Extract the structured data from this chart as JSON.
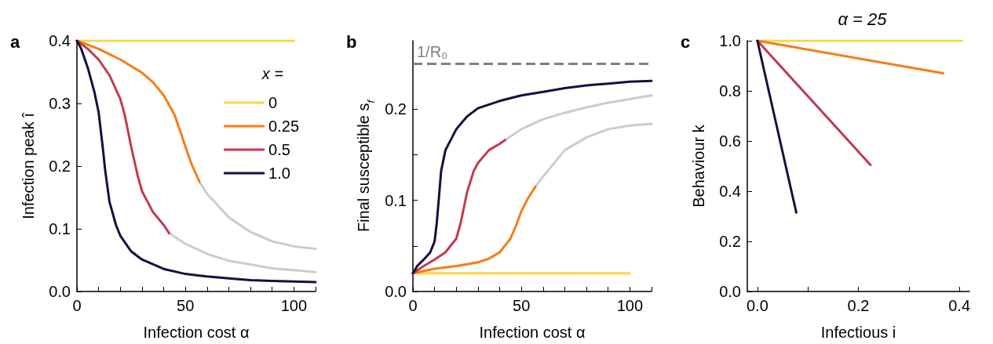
{
  "chart_data": [
    {
      "type": "line",
      "xlabel": "Infection cost α",
      "ylabel": "Infection peak î",
      "annotations": [
        "a"
      ],
      "legend_title": "x =",
      "legend": "top right",
      "grid": false,
      "marker": "none",
      "line_style": "solid",
      "xlim": [
        0,
        110
      ],
      "ylim": [
        0,
        0.4
      ],
      "xticks": [
        0,
        {
          "value": 10,
          "label": null
        },
        {
          "value": 20,
          "label": null
        },
        {
          "value": 30,
          "label": null
        },
        {
          "value": 40,
          "label": null
        },
        50,
        {
          "value": 60,
          "label": null
        },
        {
          "value": 70,
          "label": null
        },
        {
          "value": 80,
          "label": null
        },
        {
          "value": 90,
          "label": null
        },
        100,
        {
          "value": 110,
          "label": null
        }
      ],
      "yticks": [
        {
          "value": 0,
          "label": "0.0"
        },
        {
          "value": 0.1,
          "label": "0.1"
        },
        {
          "value": 0.2,
          "label": "0.2"
        },
        {
          "value": 0.3,
          "label": "0.3"
        },
        {
          "value": 0.4,
          "label": "0.4"
        }
      ],
      "series": [
        {
          "name": "0",
          "color": "#f6d645",
          "x": [
            0,
            100
          ],
          "values": [
            0.4,
            0.4
          ]
        },
        {
          "color": "#cccccc",
          "x": [
            56.5,
            60,
            70,
            80,
            90,
            100,
            110
          ],
          "values": [
            0.175,
            0.156,
            0.118,
            0.095,
            0.08,
            0.072,
            0.068
          ]
        },
        {
          "color": "#cccccc",
          "x": [
            42.5,
            50,
            60,
            70,
            80,
            90,
            100,
            110
          ],
          "values": [
            0.093,
            0.076,
            0.06,
            0.049,
            0.043,
            0.037,
            0.034,
            0.031
          ]
        },
        {
          "name": "0.25",
          "color": "#f57d15",
          "x": [
            0,
            10,
            20,
            30,
            35,
            40,
            45,
            48,
            50,
            53,
            56.5
          ],
          "values": [
            0.4,
            0.387,
            0.37,
            0.349,
            0.334,
            0.313,
            0.282,
            0.252,
            0.231,
            0.202,
            0.175
          ]
        },
        {
          "name": "0.5",
          "color": "#c03a51",
          "x": [
            0,
            5,
            10,
            15,
            20,
            22,
            25,
            28,
            30,
            35,
            40,
            42.5
          ],
          "values": [
            0.4,
            0.387,
            0.37,
            0.345,
            0.307,
            0.282,
            0.231,
            0.185,
            0.16,
            0.127,
            0.106,
            0.093
          ]
        },
        {
          "name": "1.0",
          "color": "#1b0c41",
          "x": [
            0,
            2,
            5,
            8,
            10,
            12,
            13,
            15,
            18,
            20,
            25,
            30,
            40,
            50,
            60,
            70,
            80,
            90,
            100,
            110
          ],
          "values": [
            0.4,
            0.387,
            0.357,
            0.319,
            0.286,
            0.227,
            0.194,
            0.143,
            0.106,
            0.089,
            0.064,
            0.051,
            0.036,
            0.028,
            0.024,
            0.021,
            0.018,
            0.017,
            0.016,
            0.015
          ]
        }
      ]
    },
    {
      "type": "line",
      "xlabel": "Infection cost α",
      "ylabel": "Final susceptible s$_{f}$",
      "annotations": [
        "b"
      ],
      "grid": false,
      "marker": "none",
      "line_style": "solid",
      "xlim": [
        0,
        110
      ],
      "ylim": [
        0,
        0.275
      ],
      "xticks": [
        0,
        {
          "value": 10,
          "label": null
        },
        {
          "value": 20,
          "label": null
        },
        {
          "value": 30,
          "label": null
        },
        {
          "value": 40,
          "label": null
        },
        50,
        {
          "value": 60,
          "label": null
        },
        {
          "value": 70,
          "label": null
        },
        {
          "value": 80,
          "label": null
        },
        {
          "value": 90,
          "label": null
        },
        100,
        {
          "value": 110,
          "label": null
        }
      ],
      "yticks": [
        {
          "value": 0,
          "label": "0.0"
        },
        {
          "value": 0.05,
          "label": null
        },
        {
          "value": 0.1,
          "label": "0.1"
        },
        {
          "value": 0.15,
          "label": null
        },
        {
          "value": 0.2,
          "label": "0.2"
        },
        {
          "value": 0.25,
          "label": null
        }
      ],
      "ref_lines": [
        {
          "axis": "y",
          "value": 0.25,
          "label": "1/R₀",
          "color": "#808080",
          "line_style": "dashed"
        }
      ],
      "series": [
        {
          "color": "#f6d645",
          "x": [
            0,
            100
          ],
          "values": [
            0.02,
            0.02
          ]
        },
        {
          "color": "#cccccc",
          "x": [
            56.5,
            60,
            70,
            80,
            90,
            100,
            110
          ],
          "values": [
            0.115,
            0.126,
            0.155,
            0.169,
            0.178,
            0.182,
            0.184
          ]
        },
        {
          "color": "#cccccc",
          "x": [
            42.5,
            50,
            60,
            70,
            80,
            90,
            100,
            110
          ],
          "values": [
            0.166,
            0.178,
            0.189,
            0.196,
            0.202,
            0.207,
            0.211,
            0.215
          ]
        },
        {
          "color": "#f57d15",
          "x": [
            0,
            10,
            20,
            30,
            35,
            40,
            45,
            48,
            50,
            53,
            56.5
          ],
          "values": [
            0.02,
            0.025,
            0.028,
            0.032,
            0.036,
            0.043,
            0.058,
            0.075,
            0.088,
            0.102,
            0.115
          ]
        },
        {
          "color": "#c03a51",
          "x": [
            0,
            5,
            10,
            15,
            20,
            22,
            25,
            28,
            30,
            35,
            40,
            42.5
          ],
          "values": [
            0.02,
            0.028,
            0.035,
            0.043,
            0.058,
            0.075,
            0.109,
            0.132,
            0.141,
            0.155,
            0.162,
            0.166
          ]
        },
        {
          "color": "#1b0c41",
          "x": [
            0,
            2,
            5,
            8,
            10,
            11,
            12,
            13,
            15,
            20,
            25,
            30,
            40,
            50,
            60,
            70,
            80,
            90,
            100,
            110
          ],
          "values": [
            0.02,
            0.028,
            0.035,
            0.043,
            0.055,
            0.075,
            0.103,
            0.132,
            0.155,
            0.178,
            0.192,
            0.201,
            0.209,
            0.215,
            0.219,
            0.223,
            0.226,
            0.228,
            0.23,
            0.231
          ]
        }
      ]
    },
    {
      "type": "line",
      "title": "α = 25",
      "xlabel": "Infectious i",
      "ylabel": "Behaviour k",
      "annotations": [
        "c"
      ],
      "grid": false,
      "marker": "none",
      "line_style": "solid",
      "xlim": [
        -0.02,
        0.42
      ],
      "ylim": [
        0,
        1
      ],
      "xticks": [
        {
          "value": 0,
          "label": "0.0"
        },
        {
          "value": 0.1,
          "label": null
        },
        {
          "value": 0.2,
          "label": "0.2"
        },
        {
          "value": 0.3,
          "label": null
        },
        {
          "value": 0.4,
          "label": "0.4"
        }
      ],
      "yticks": [
        {
          "value": 0,
          "label": "0.0"
        },
        {
          "value": 0.2,
          "label": "0.2"
        },
        {
          "value": 0.4,
          "label": "0.4"
        },
        {
          "value": 0.6,
          "label": "0.6"
        },
        {
          "value": 0.8,
          "label": "0.8"
        },
        {
          "value": 1,
          "label": "1.0"
        }
      ],
      "series": [
        {
          "color": "#f6d645",
          "x": [
            0,
            0.405
          ],
          "values": [
            1,
            1
          ]
        },
        {
          "color": "#f57d15",
          "x": [
            0,
            0.368
          ],
          "values": [
            1,
            0.87
          ]
        },
        {
          "color": "#c03a51",
          "x": [
            0,
            0.224
          ],
          "values": [
            1,
            0.505
          ]
        },
        {
          "color": "#1b0c41",
          "x": [
            0,
            0.077
          ],
          "values": [
            1,
            0.315
          ]
        }
      ]
    }
  ]
}
